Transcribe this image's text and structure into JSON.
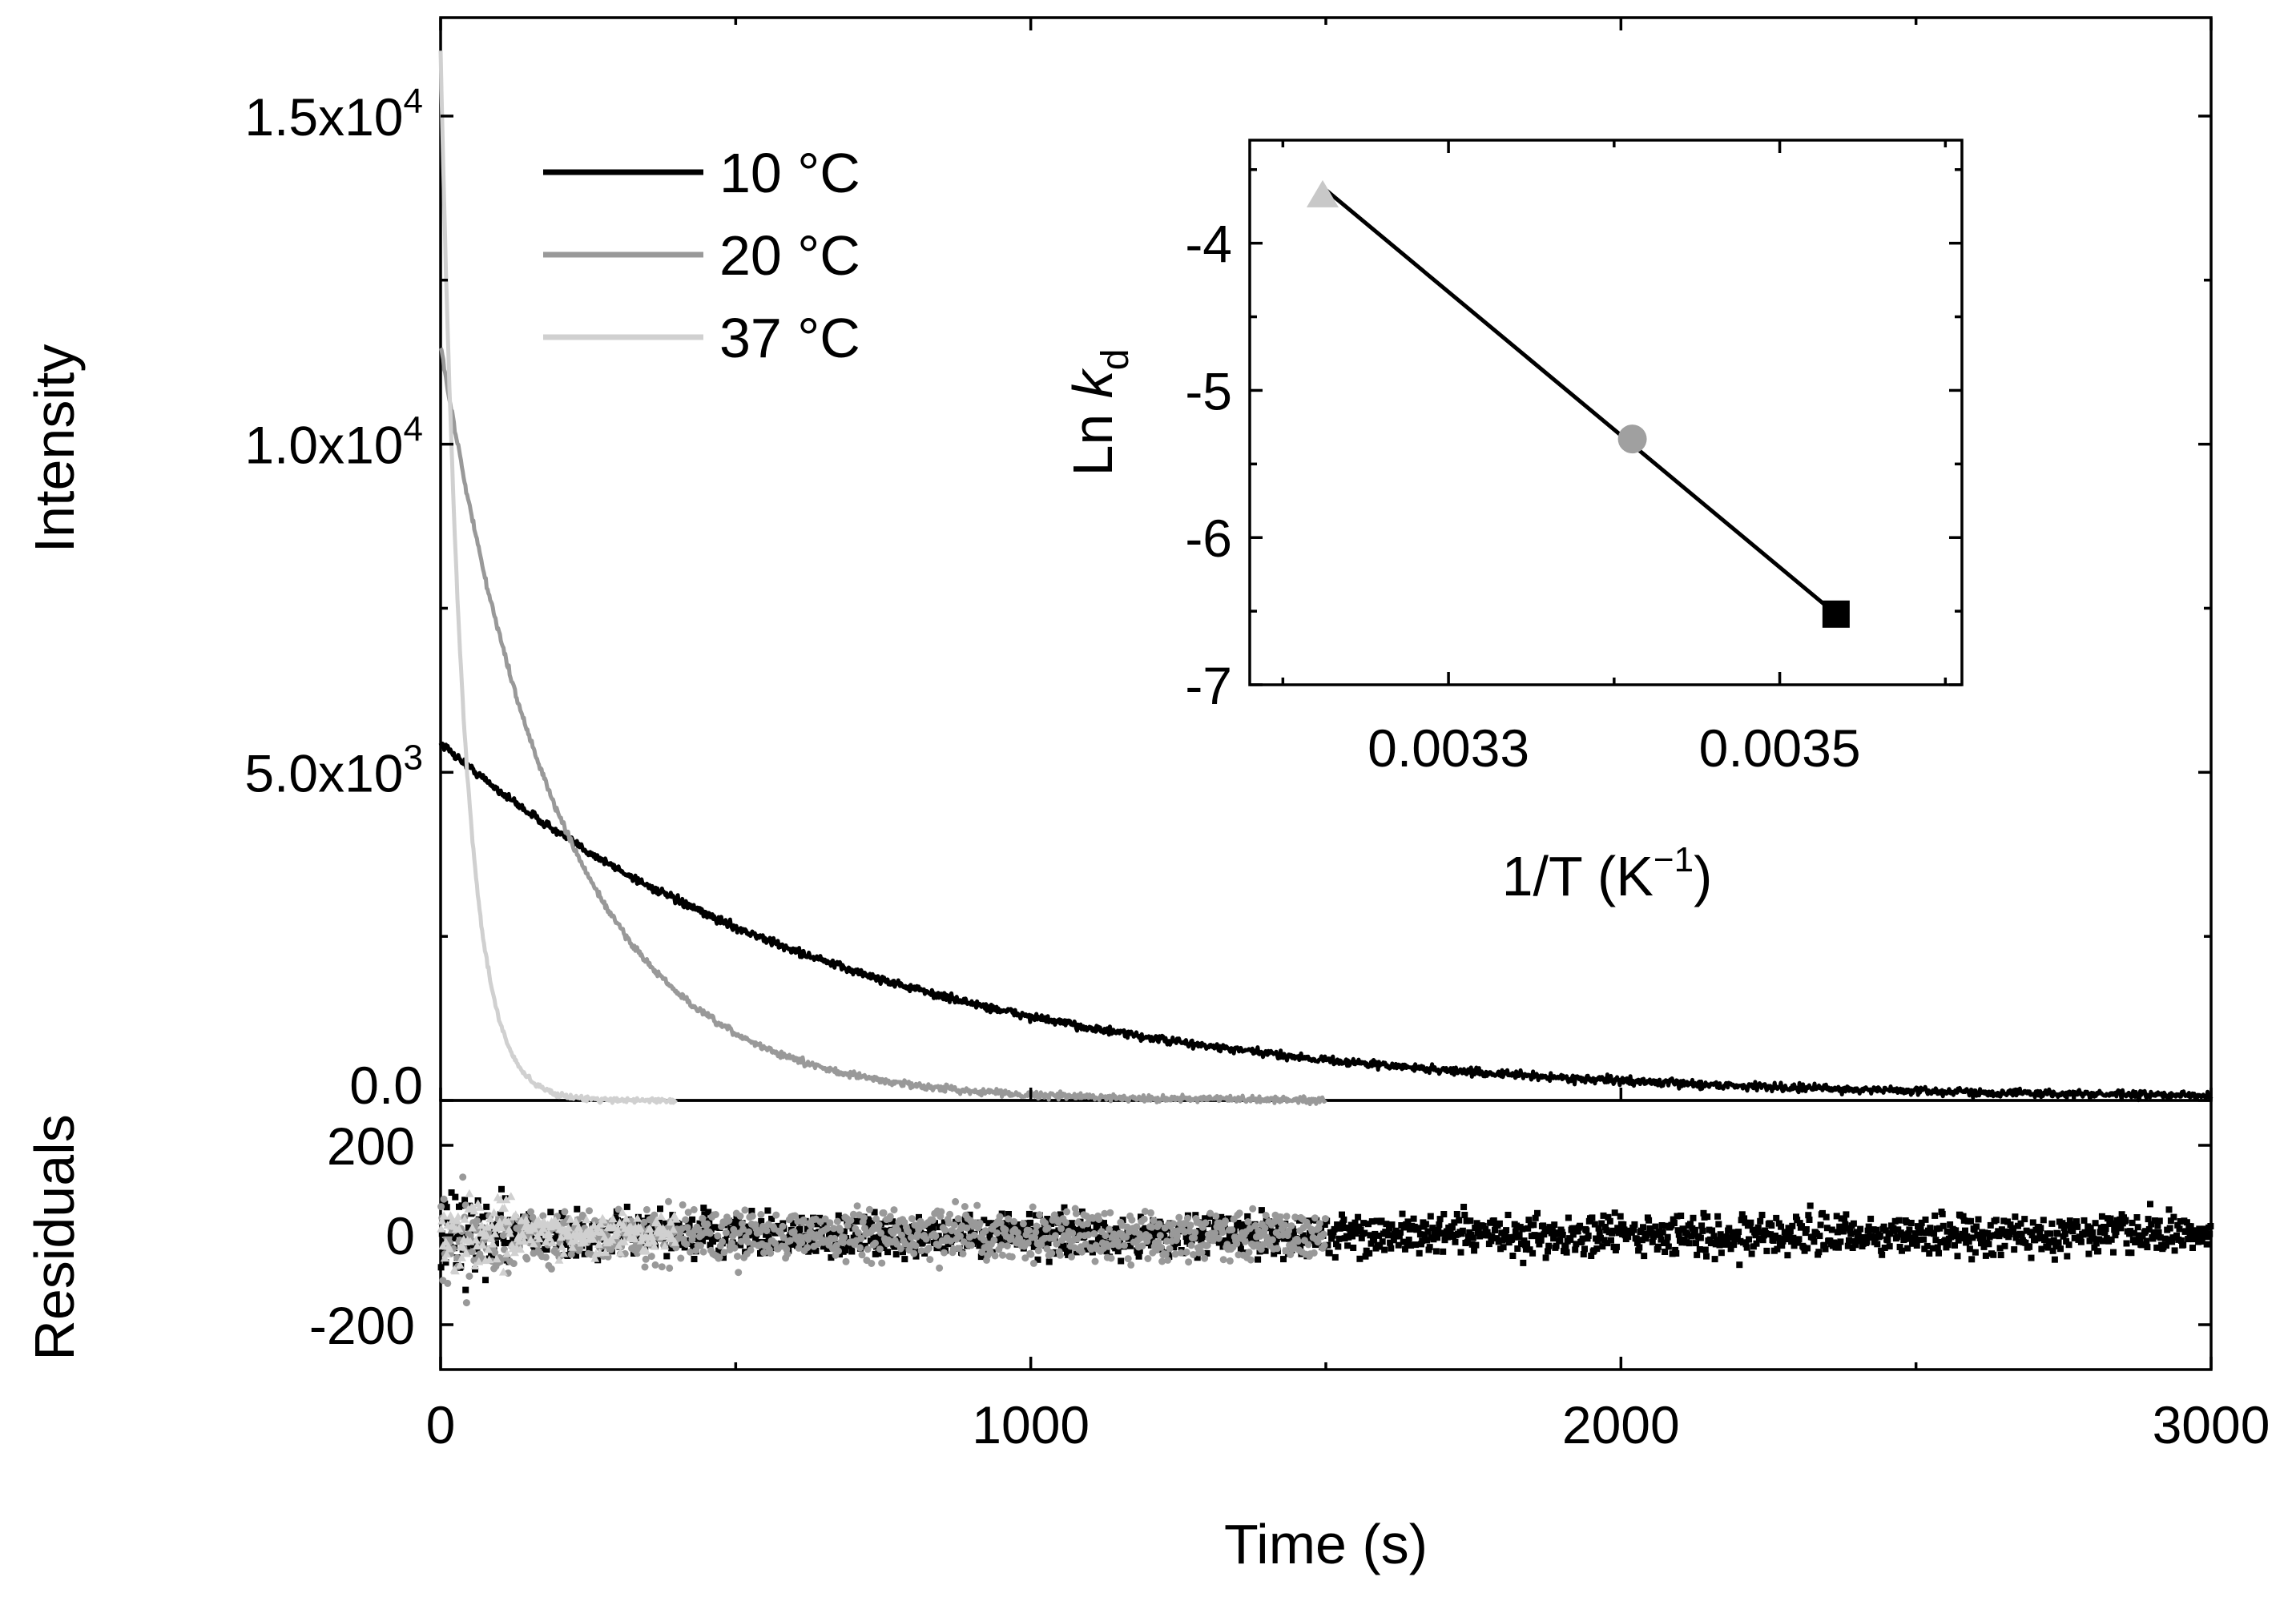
{
  "chart_data": [
    {
      "id": "main",
      "type": "line",
      "title": "",
      "xlabel": "Time (s)",
      "ylabel": "Intensity",
      "xlim": [
        0,
        3000
      ],
      "ylim": [
        0,
        16500
      ],
      "x_ticks": [
        0,
        1000,
        2000,
        3000
      ],
      "x_tick_labels": [
        "0",
        "1000",
        "2000",
        "3000"
      ],
      "y_ticks": [
        0,
        5000,
        10000,
        15000
      ],
      "y_tick_labels": [
        {
          "mantissa": "0.0",
          "exponent": ""
        },
        {
          "mantissa": "5.0x10",
          "exponent": "3"
        },
        {
          "mantissa": "1.0x10",
          "exponent": "4"
        },
        {
          "mantissa": "1.5x10",
          "exponent": "4"
        }
      ],
      "legend_position": "top-left",
      "series": [
        {
          "name": "10 °C",
          "color": "#000000",
          "t_end": 3000,
          "i0": 5450,
          "k": 0.00145,
          "noise": 60
        },
        {
          "name": "20 °C",
          "color": "#999999",
          "t_end": 1500,
          "i0": 11500,
          "k": 0.00485,
          "noise": 50
        },
        {
          "name": "37 °C",
          "color": "#d0d0d0",
          "t_end": 400,
          "i0": 16000,
          "k": 0.0258,
          "noise": 40
        }
      ]
    },
    {
      "id": "residuals",
      "type": "scatter",
      "xlabel": "Time (s)",
      "ylabel": "Residuals",
      "xlim": [
        0,
        3000
      ],
      "ylim": [
        -300,
        300
      ],
      "y_ticks": [
        200,
        0,
        -200
      ],
      "y_tick_labels": [
        "200",
        "0",
        "-200"
      ],
      "series": [
        {
          "name": "10 °C",
          "marker": "square",
          "color": "#000000",
          "t_end": 3000,
          "spread": 45
        },
        {
          "name": "20 °C",
          "marker": "circle",
          "color": "#999999",
          "t_end": 1500,
          "spread": 55
        },
        {
          "name": "37 °C",
          "marker": "triangle",
          "color": "#d0d0d0",
          "t_end": 400,
          "spread": 45
        }
      ]
    },
    {
      "id": "inset",
      "type": "scatter",
      "xlabel": "1/T (K",
      "xlabel_superscript": "−1",
      "xlabel_close": ")",
      "ylabel": "Ln ",
      "ylabel_italic": "k",
      "ylabel_subscript": "d",
      "xlim": [
        0.00318,
        0.00361
      ],
      "ylim": [
        -7,
        -3.3
      ],
      "x_ticks": [
        0.0033,
        0.0035
      ],
      "x_tick_labels": [
        "0.0033",
        "0.0035"
      ],
      "y_ticks": [
        -4,
        -5,
        -6,
        -7
      ],
      "y_tick_labels": [
        "-4",
        "-5",
        "-6",
        "-7"
      ],
      "points": [
        {
          "x": 0.003224,
          "y": -3.68,
          "marker": "triangle",
          "color": "#c8c8c8"
        },
        {
          "x": 0.003411,
          "y": -5.33,
          "marker": "circle",
          "color": "#a0a0a0"
        },
        {
          "x": 0.003534,
          "y": -6.52,
          "marker": "square",
          "color": "#000000"
        }
      ],
      "fit_line": {
        "x": [
          0.003224,
          0.003534
        ],
        "y": [
          -3.62,
          -6.52
        ]
      }
    }
  ]
}
